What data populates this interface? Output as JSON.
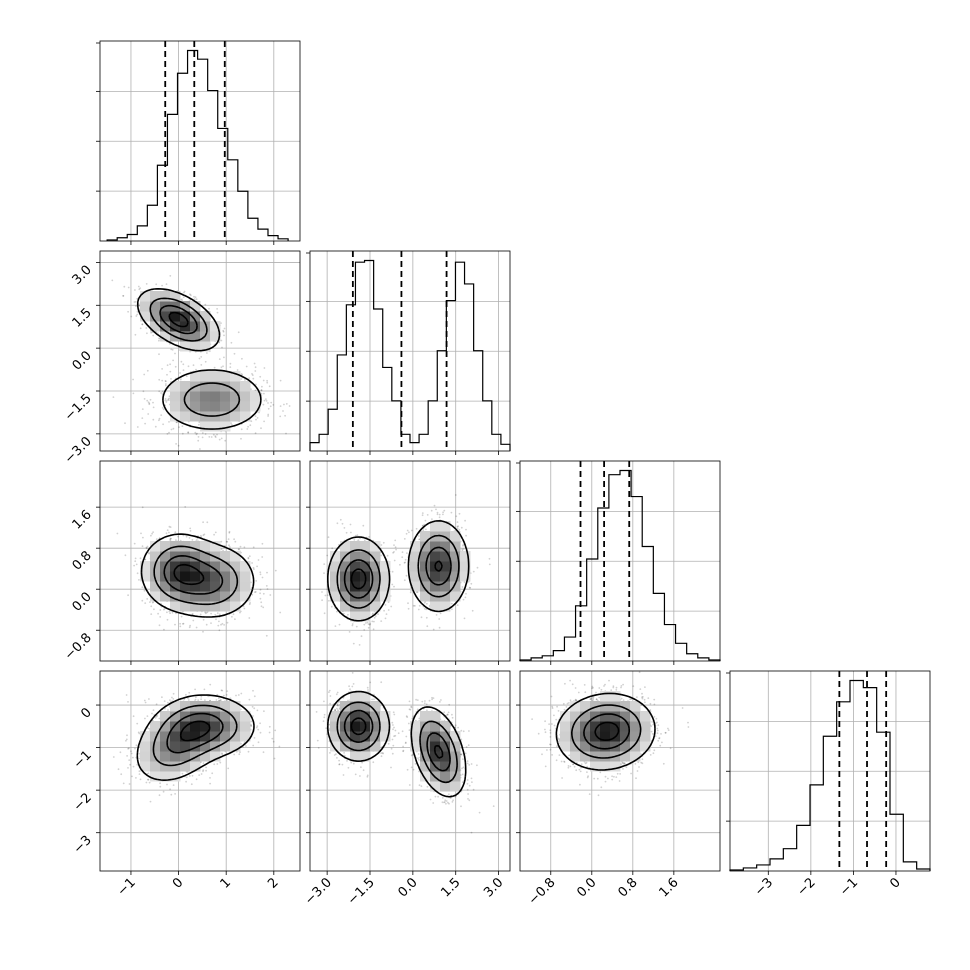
{
  "chart_data": {
    "type": "corner",
    "dimensions": [
      {
        "ticks": [
          -1,
          0,
          1,
          2
        ],
        "tick_labels": [
          "−1",
          "0",
          "1",
          "2"
        ],
        "range": [
          -1.65,
          2.55
        ],
        "quantiles": [
          -0.28,
          0.33,
          0.97
        ]
      },
      {
        "ticks": [
          -3.0,
          -1.5,
          0.0,
          1.5,
          3.0
        ],
        "tick_labels": [
          "−3.0",
          "−1.5",
          "0.0",
          "1.5",
          "3.0"
        ],
        "range": [
          -3.6,
          3.4
        ],
        "quantiles": [
          -2.1,
          -0.4,
          1.18
        ]
      },
      {
        "ticks": [
          -0.8,
          0.0,
          0.8,
          1.6
        ],
        "tick_labels": [
          "−0.8",
          "0.0",
          "0.8",
          "1.6"
        ],
        "range": [
          -1.4,
          2.5
        ],
        "quantiles": [
          -0.22,
          0.24,
          0.73
        ]
      },
      {
        "ticks": [
          -3,
          -2,
          -1,
          0
        ],
        "tick_labels": [
          "−3",
          "−2",
          "−1",
          "0"
        ],
        "range": [
          -3.9,
          0.8
        ],
        "quantiles": [
          -1.33,
          -0.68,
          -0.23
        ]
      }
    ],
    "histograms": [
      {
        "bin_range": [
          -1.5,
          2.3
        ],
        "counts": [
          1,
          3,
          6,
          14,
          33,
          70,
          117,
          155,
          176,
          168,
          139,
          104,
          75,
          46,
          21,
          11,
          5,
          2
        ]
      },
      {
        "bin_range": [
          -3.6,
          3.4
        ],
        "counts": [
          10,
          20,
          50,
          115,
          175,
          226,
          228,
          170,
          100,
          60,
          20,
          10,
          20,
          60,
          120,
          180,
          226,
          200,
          120,
          60,
          20,
          8
        ]
      },
      {
        "bin_range": [
          -1.4,
          2.5
        ],
        "counts": [
          1,
          3,
          5,
          10,
          23,
          53,
          98,
          147,
          179,
          183,
          158,
          110,
          65,
          35,
          17,
          7,
          3,
          1
        ]
      },
      {
        "bin_range": [
          -3.9,
          0.8
        ],
        "counts": [
          1,
          3,
          6,
          12,
          22,
          45,
          85,
          133,
          167,
          188,
          181,
          137,
          56,
          9,
          2
        ]
      }
    ],
    "pairs": [
      {
        "row": 1,
        "col": 0,
        "components": [
          {
            "mean": [
              0.0,
              1.0
            ],
            "sd": [
              0.4,
              0.5
            ],
            "corr": -0.5
          },
          {
            "mean": [
              0.7,
              -1.8
            ],
            "sd": [
              0.55,
              0.55
            ],
            "corr": 0.0
          }
        ]
      },
      {
        "row": 2,
        "col": 0,
        "components": [
          {
            "mean": [
              0.0,
              0.35
            ],
            "sd": [
              0.38,
              0.35
            ],
            "corr": 0.0
          },
          {
            "mean": [
              0.7,
              0.15
            ],
            "sd": [
              0.45,
              0.35
            ],
            "corr": 0.0
          }
        ]
      },
      {
        "row": 2,
        "col": 1,
        "components": [
          {
            "mean": [
              -1.9,
              0.2
            ],
            "sd": [
              0.5,
              0.38
            ],
            "corr": 0.0
          },
          {
            "mean": [
              0.9,
              0.45
            ],
            "sd": [
              0.5,
              0.42
            ],
            "corr": 0.0
          }
        ]
      },
      {
        "row": 3,
        "col": 0,
        "components": [
          {
            "mean": [
              0.0,
              -0.9
            ],
            "sd": [
              0.45,
              0.45
            ],
            "corr": 0.35
          },
          {
            "mean": [
              0.6,
              -0.5
            ],
            "sd": [
              0.5,
              0.35
            ],
            "corr": 0.0
          }
        ]
      },
      {
        "row": 3,
        "col": 1,
        "components": [
          {
            "mean": [
              -1.9,
              -0.5
            ],
            "sd": [
              0.5,
              0.38
            ],
            "corr": 0.0
          },
          {
            "mean": [
              0.9,
              -1.1
            ],
            "sd": [
              0.45,
              0.5
            ],
            "corr": -0.4
          }
        ]
      },
      {
        "row": 3,
        "col": 2,
        "components": [
          {
            "mean": [
              0.1,
              -0.7
            ],
            "sd": [
              0.42,
              0.42
            ],
            "corr": 0.0
          },
          {
            "mean": [
              0.45,
              -0.55
            ],
            "sd": [
              0.4,
              0.4
            ],
            "corr": 0.0
          }
        ]
      }
    ],
    "colors": {
      "points": "#000000",
      "contour": "#000000",
      "density": "#000000"
    }
  }
}
